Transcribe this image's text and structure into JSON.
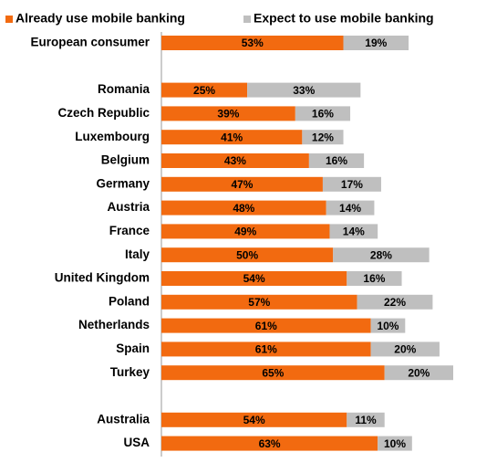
{
  "chart_data": {
    "type": "stacked-bar-horizontal",
    "categories": [
      "European consumer",
      null,
      "Romania",
      "Czech Republic",
      "Luxembourg",
      "Belgium",
      "Germany",
      "Austria",
      "France",
      "Italy",
      "United Kingdom",
      "Poland",
      "Netherlands",
      "Spain",
      "Turkey",
      null,
      "Australia",
      "USA"
    ],
    "series": [
      {
        "name": "Already use mobile banking",
        "color": "#f26a10",
        "values": [
          53,
          null,
          25,
          39,
          41,
          43,
          47,
          48,
          49,
          50,
          54,
          57,
          61,
          61,
          65,
          null,
          54,
          63
        ],
        "value_labels": [
          "53%",
          null,
          "25%",
          "39%",
          "41%",
          "43%",
          "47%",
          "48%",
          "49%",
          "50%",
          "54%",
          "57%",
          "61%",
          "61%",
          "65%",
          null,
          "54%",
          "63%"
        ]
      },
      {
        "name": "Expect to use mobile banking",
        "color": "#bfbfbf",
        "values": [
          19,
          null,
          33,
          16,
          12,
          16,
          17,
          14,
          14,
          28,
          16,
          22,
          10,
          20,
          20,
          null,
          11,
          10
        ],
        "value_labels": [
          "19%",
          null,
          "33%",
          "16%",
          "12%",
          "16%",
          "17%",
          "14%",
          "14%",
          "28%",
          "16%",
          "22%",
          "10%",
          "20%",
          "20%",
          null,
          "11%",
          "10%"
        ]
      }
    ],
    "legend": "top-left"
  }
}
